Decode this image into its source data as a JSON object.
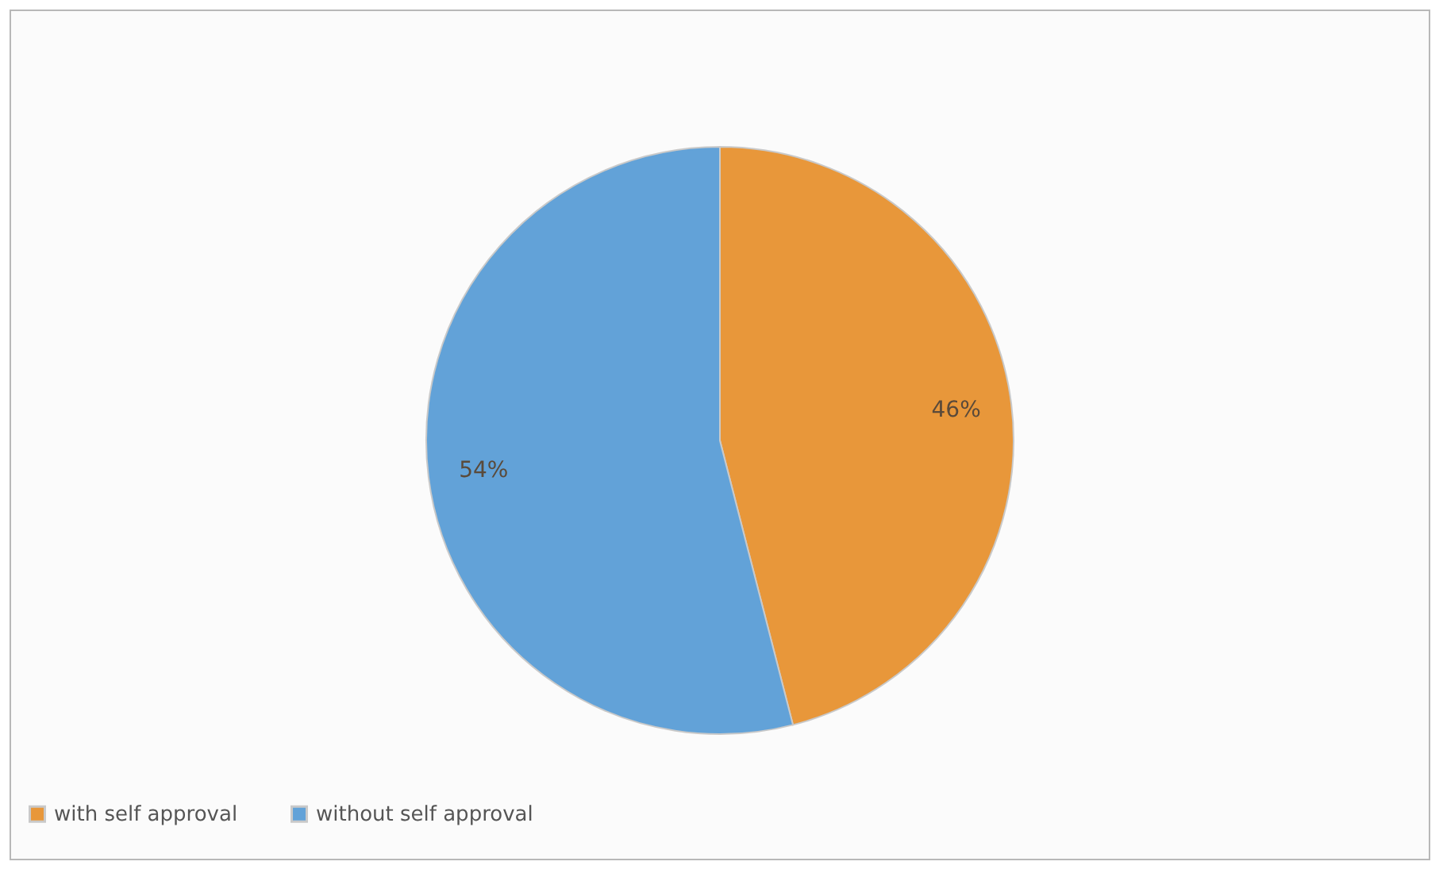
{
  "chart_data": {
    "type": "pie",
    "categories": [
      "with self approval",
      "without self approval"
    ],
    "values": [
      46,
      54
    ],
    "colors": [
      "#e8973a",
      "#62a2d8"
    ],
    "value_labels": [
      "46%",
      "54%"
    ],
    "legend": "bottom"
  }
}
